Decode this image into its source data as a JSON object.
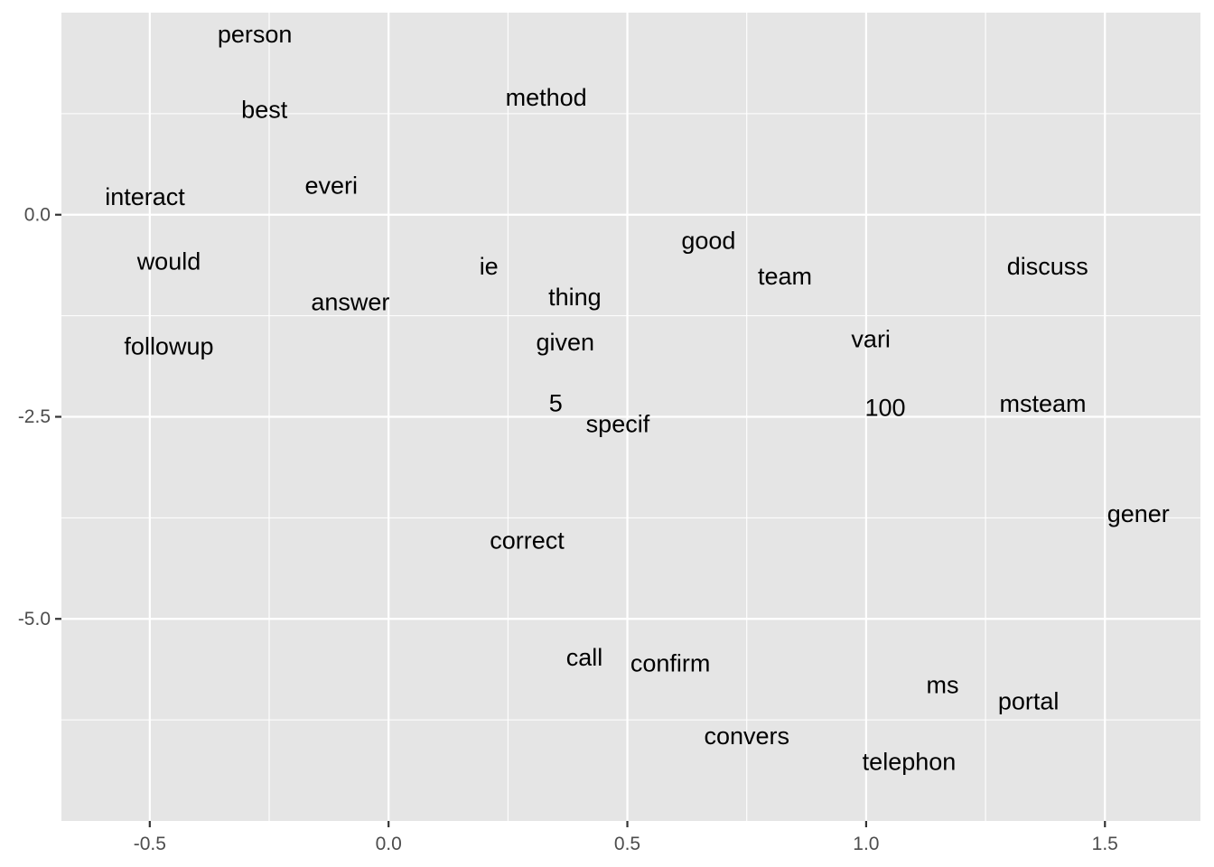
{
  "chart_data": {
    "type": "scatter",
    "title": "",
    "xlabel": "",
    "ylabel": "",
    "xlim": [
      -0.685,
      1.7
    ],
    "ylim": [
      -7.5,
      2.5
    ],
    "x_ticks": [
      {
        "value": -0.5,
        "label": "-0.5"
      },
      {
        "value": 0.0,
        "label": "0.0"
      },
      {
        "value": 0.5,
        "label": "0.5"
      },
      {
        "value": 1.0,
        "label": "1.0"
      },
      {
        "value": 1.5,
        "label": "1.5"
      }
    ],
    "y_ticks": [
      {
        "value": 0.0,
        "label": "0.0"
      },
      {
        "value": -2.5,
        "label": "-2.5"
      },
      {
        "value": -5.0,
        "label": "-5.0"
      }
    ],
    "x_minor": [
      -0.25,
      0.25,
      0.75,
      1.25
    ],
    "y_minor": [
      1.25,
      -1.25,
      -3.75,
      -6.25
    ],
    "grid": true,
    "legend": "none",
    "points": [
      {
        "label": "person",
        "x": -0.28,
        "y": 2.23
      },
      {
        "label": "best",
        "x": -0.26,
        "y": 1.3
      },
      {
        "label": "method",
        "x": 0.33,
        "y": 1.45
      },
      {
        "label": "interact",
        "x": -0.51,
        "y": 0.22
      },
      {
        "label": "everi",
        "x": -0.12,
        "y": 0.36
      },
      {
        "label": "would",
        "x": -0.46,
        "y": -0.58
      },
      {
        "label": "answer",
        "x": -0.08,
        "y": -1.08
      },
      {
        "label": "followup",
        "x": -0.46,
        "y": -1.63
      },
      {
        "label": "ie",
        "x": 0.21,
        "y": -0.64
      },
      {
        "label": "thing",
        "x": 0.39,
        "y": -1.02
      },
      {
        "label": "given",
        "x": 0.37,
        "y": -1.58
      },
      {
        "label": "good",
        "x": 0.67,
        "y": -0.32
      },
      {
        "label": "team",
        "x": 0.83,
        "y": -0.76
      },
      {
        "label": "discuss",
        "x": 1.38,
        "y": -0.64
      },
      {
        "label": "vari",
        "x": 1.01,
        "y": -1.54
      },
      {
        "label": "5",
        "x": 0.35,
        "y": -2.33
      },
      {
        "label": "specif",
        "x": 0.48,
        "y": -2.59
      },
      {
        "label": "100",
        "x": 1.04,
        "y": -2.39
      },
      {
        "label": "msteam",
        "x": 1.37,
        "y": -2.34
      },
      {
        "label": "gener",
        "x": 1.57,
        "y": -3.7
      },
      {
        "label": "correct",
        "x": 0.29,
        "y": -4.03
      },
      {
        "label": "call",
        "x": 0.41,
        "y": -5.48
      },
      {
        "label": "confirm",
        "x": 0.59,
        "y": -5.55
      },
      {
        "label": "ms",
        "x": 1.16,
        "y": -5.82
      },
      {
        "label": "portal",
        "x": 1.34,
        "y": -6.02
      },
      {
        "label": "convers",
        "x": 0.75,
        "y": -6.45
      },
      {
        "label": "telephon",
        "x": 1.09,
        "y": -6.77
      }
    ]
  }
}
